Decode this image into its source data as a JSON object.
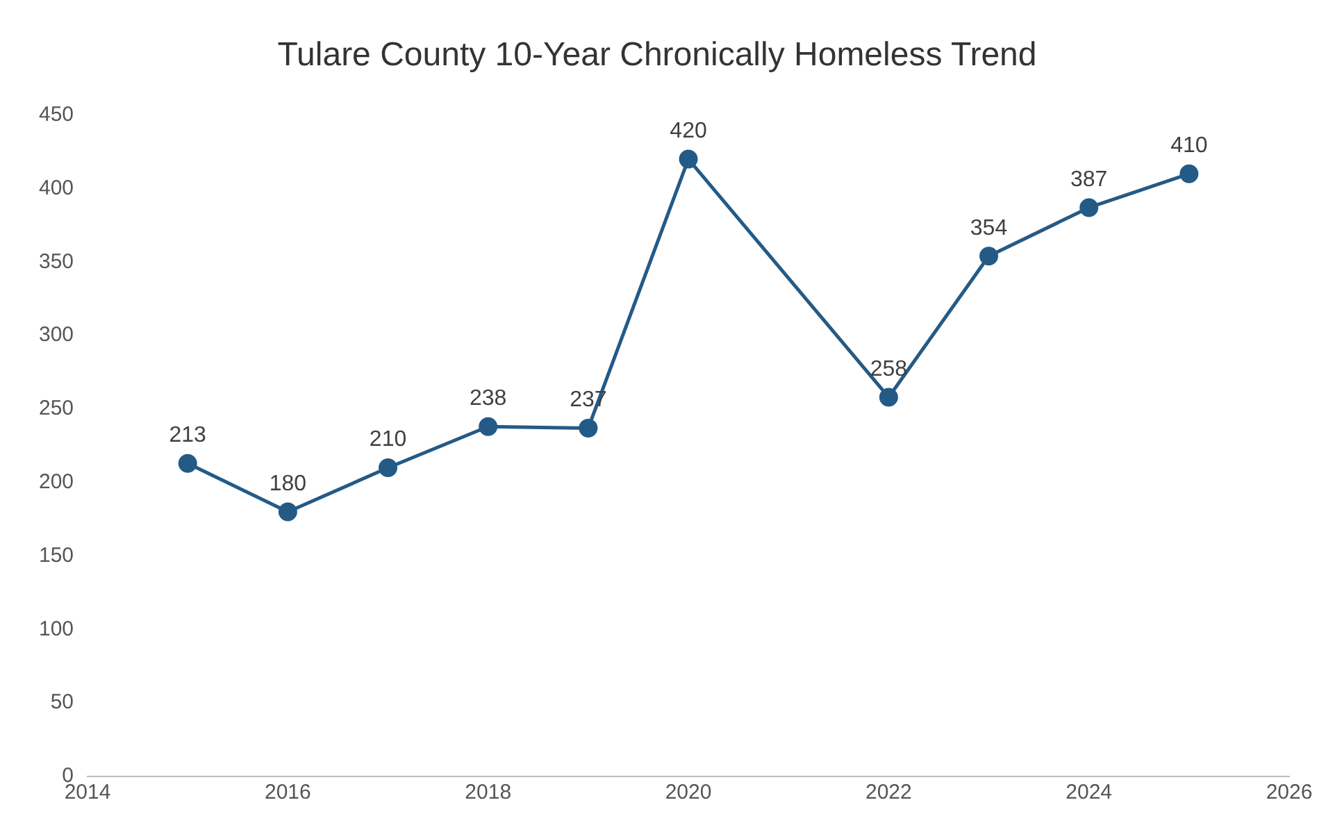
{
  "chart_data": {
    "type": "line",
    "title": "Tulare County 10-Year Chronically Homeless Trend",
    "x": [
      2015,
      2016,
      2017,
      2018,
      2019,
      2020,
      2022,
      2023,
      2024,
      2025
    ],
    "series": [
      {
        "color": "#245a86",
        "values": [
          213,
          180,
          210,
          238,
          237,
          420,
          258,
          354,
          387,
          410
        ]
      }
    ],
    "xlim": [
      2014,
      2026
    ],
    "xticks": [
      2014,
      2016,
      2018,
      2020,
      2022,
      2024,
      2026
    ],
    "ylim": [
      0,
      450
    ],
    "yticks": [
      0,
      50,
      100,
      150,
      200,
      250,
      300,
      350,
      400,
      450
    ],
    "grid": false,
    "legend": false,
    "marker": "circle",
    "line_style": "solid",
    "data_labels": true
  }
}
